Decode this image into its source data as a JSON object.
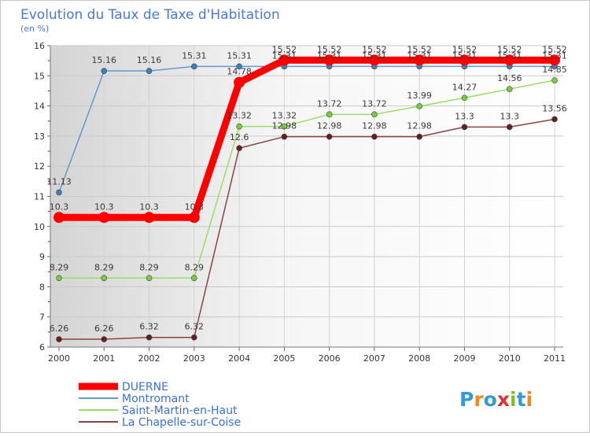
{
  "chart_data": {
    "type": "line",
    "title": "Evolution du Taux de Taxe d'Habitation",
    "subtitle": "(en %)",
    "xlabel": "",
    "ylabel": "",
    "x": [
      2000,
      2001,
      2002,
      2003,
      2004,
      2005,
      2006,
      2007,
      2008,
      2009,
      2010,
      2011
    ],
    "x_labels": [
      "2000",
      "2001",
      "2002",
      "2003",
      "2004",
      "2005",
      "2006",
      "2007",
      "2008",
      "2009",
      "2010",
      "2011"
    ],
    "ylim": [
      6,
      16
    ],
    "y_ticks": [
      6,
      7,
      8,
      9,
      10,
      11,
      12,
      13,
      14,
      15,
      16
    ],
    "y_tick_labels": [
      "6",
      "7",
      "8",
      "9",
      "10",
      "11",
      "12",
      "13",
      "14",
      "15",
      "16"
    ],
    "grid": true,
    "legend_position": "bottom-left",
    "series": [
      {
        "name": "DUERNE",
        "color": "#ff0000",
        "emphasis": true,
        "values": [
          10.3,
          10.3,
          10.3,
          10.3,
          14.78,
          15.52,
          15.52,
          15.52,
          15.52,
          15.52,
          15.52,
          15.52
        ],
        "labels": [
          "10.3",
          "10.3",
          "10.3",
          "10.3",
          "14.78",
          "15.52",
          "15.52",
          "15.52",
          "15.52",
          "15.52",
          "15.52",
          "15.52"
        ]
      },
      {
        "name": "Montromant",
        "color": "#6699cc",
        "marker_color": "#3a80c0",
        "values": [
          11.13,
          15.16,
          15.16,
          15.31,
          15.31,
          15.31,
          15.31,
          15.31,
          15.31,
          15.31,
          15.31,
          15.31
        ],
        "labels": [
          "11.13",
          "15.16",
          "15.16",
          "15.31",
          "15.31",
          "15.31",
          "15.31",
          "15.31",
          "15.31",
          "15.31",
          "15.31",
          "15.31"
        ]
      },
      {
        "name": "Saint-Martin-en-Haut",
        "color": "#99dd66",
        "marker_color": "#77cc44",
        "values": [
          8.29,
          8.29,
          8.29,
          8.29,
          13.32,
          13.32,
          13.72,
          13.72,
          13.99,
          14.27,
          14.56,
          14.85
        ],
        "labels": [
          "8.29",
          "8.29",
          "8.29",
          "8.29",
          "13.32",
          "13.32",
          "13.72",
          "13.72",
          "13.99",
          "14.27",
          "14.56",
          "14.85"
        ]
      },
      {
        "name": "La Chapelle-sur-Coise",
        "color": "#884444",
        "marker_color": "#661e1e",
        "values": [
          6.26,
          6.26,
          6.32,
          6.32,
          12.6,
          12.98,
          12.98,
          12.98,
          12.98,
          13.3,
          13.3,
          13.56
        ],
        "labels": [
          "6.26",
          "6.26",
          "6.32",
          "6.32",
          "12.6",
          "12.98",
          "12.98",
          "12.98",
          "12.98",
          "13.3",
          "13.3",
          "13.56"
        ]
      }
    ]
  },
  "legend_label_color": "#3a6fd8",
  "brand": {
    "letters": [
      "P",
      "r",
      "o",
      "x",
      "i",
      "t",
      "i"
    ],
    "colors": [
      "#3399dd",
      "#ee8822",
      "#3399dd",
      "#dd3333",
      "#88bb22",
      "#3399dd",
      "#ee8822"
    ]
  }
}
